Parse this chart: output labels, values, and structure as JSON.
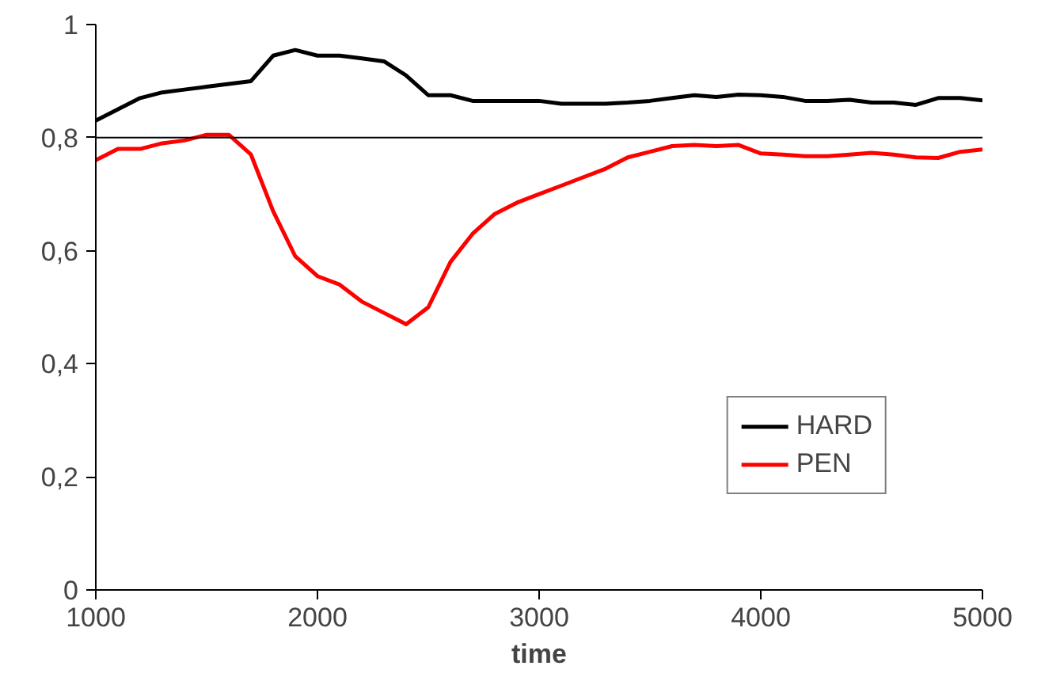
{
  "chart_data": {
    "type": "line",
    "xlabel": "time",
    "x": [
      1000,
      1100,
      1200,
      1300,
      1400,
      1500,
      1600,
      1700,
      1800,
      1900,
      2000,
      2100,
      2200,
      2300,
      2400,
      2500,
      2600,
      2700,
      2800,
      2900,
      3000,
      3100,
      3200,
      3300,
      3400,
      3500,
      3600,
      3700,
      3800,
      3900,
      4000,
      4100,
      4200,
      4300,
      4400,
      4500,
      4600,
      4700,
      4800,
      4900,
      5000
    ],
    "series": [
      {
        "name": "HARD",
        "color": "#000000",
        "values": [
          0.83,
          0.85,
          0.87,
          0.88,
          0.885,
          0.89,
          0.895,
          0.9,
          0.945,
          0.955,
          0.945,
          0.945,
          0.94,
          0.935,
          0.91,
          0.875,
          0.875,
          0.865,
          0.865,
          0.865,
          0.865,
          0.86,
          0.86,
          0.86,
          0.862,
          0.865,
          0.87,
          0.875,
          0.872,
          0.876,
          0.875,
          0.872,
          0.865,
          0.865,
          0.867,
          0.862,
          0.862,
          0.858,
          0.87,
          0.87,
          0.866
        ]
      },
      {
        "name": "PEN",
        "color": "#ff0000",
        "values": [
          0.76,
          0.78,
          0.78,
          0.79,
          0.795,
          0.805,
          0.805,
          0.77,
          0.67,
          0.59,
          0.555,
          0.54,
          0.51,
          0.49,
          0.47,
          0.5,
          0.58,
          0.63,
          0.665,
          0.685,
          0.7,
          0.715,
          0.73,
          0.745,
          0.765,
          0.775,
          0.785,
          0.787,
          0.785,
          0.787,
          0.772,
          0.77,
          0.767,
          0.767,
          0.77,
          0.773,
          0.77,
          0.765,
          0.764,
          0.775,
          0.779
        ]
      }
    ],
    "xlim": [
      1000,
      5000
    ],
    "xticks": [
      1000,
      2000,
      3000,
      4000,
      5000
    ],
    "ylim": [
      0,
      1
    ],
    "yticks": [
      0,
      {
        "value": 0.2,
        "label": "0,2"
      },
      {
        "value": 0.4,
        "label": "0,4"
      },
      {
        "value": 0.6,
        "label": "0,6"
      },
      {
        "value": 0.8,
        "label": "0,8"
      },
      1
    ],
    "ref_lines": [
      {
        "axis": "y",
        "value": 0.8,
        "color": "#000000"
      }
    ],
    "grid": false,
    "legend": "bottom right",
    "marker": "none",
    "line_style": "solid"
  }
}
